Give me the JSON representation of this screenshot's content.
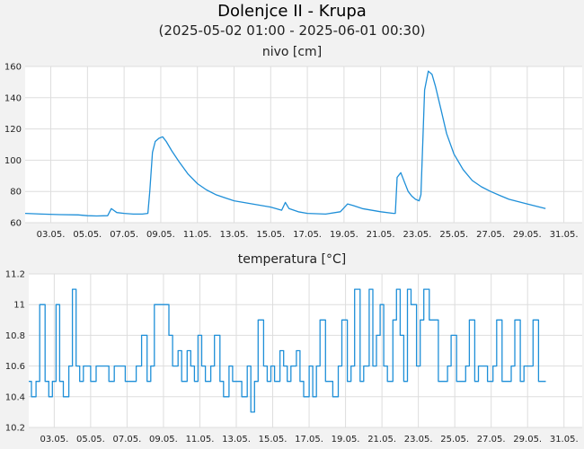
{
  "title": "Dolenjce II - Krupa",
  "subtitle": "(2025-05-02 01:00 - 2025-06-01 00:30)",
  "colors": {
    "line": "#1e8fd8",
    "grid": "#dddddd",
    "plot_bg": "#ffffff",
    "page_bg": "#f2f2f2"
  },
  "chart_data": [
    {
      "type": "line",
      "title": "nivo [cm]",
      "xlabel": "",
      "ylabel": "",
      "x_tick_labels": [
        "03.05.",
        "05.05.",
        "07.05.",
        "09.05.",
        "11.05.",
        "13.05.",
        "15.05.",
        "17.05.",
        "19.05.",
        "21.05.",
        "23.05.",
        "25.05.",
        "27.05.",
        "29.05.",
        "31.05."
      ],
      "x_tick_days": [
        3,
        5,
        7,
        9,
        11,
        13,
        15,
        17,
        19,
        21,
        23,
        25,
        27,
        29,
        31
      ],
      "xlim": [
        1.6,
        32.0
      ],
      "ylim": [
        60,
        160
      ],
      "y_ticks": [
        60,
        80,
        100,
        120,
        140,
        160
      ],
      "grid": true,
      "series": [
        {
          "x": [
            1.6,
            2.5,
            3.5,
            4.5,
            5.0,
            5.5,
            6.1,
            6.3,
            6.6,
            7.0,
            7.5,
            8.0,
            8.3,
            8.4,
            8.55,
            8.7,
            8.9,
            9.1,
            9.3,
            9.6,
            10.0,
            10.5,
            11.0,
            11.5,
            12.0,
            12.5,
            13.0,
            14.0,
            15.0,
            15.6,
            15.8,
            16.0,
            16.5,
            17.0,
            18.0,
            18.8,
            19.2,
            19.5,
            20.0,
            21.0,
            21.7,
            21.8,
            21.9,
            22.1,
            22.3,
            22.5,
            22.7,
            22.9,
            23.1,
            23.2,
            23.3,
            23.4,
            23.6,
            23.8,
            24.0,
            24.3,
            24.6,
            25.0,
            25.5,
            26.0,
            26.5,
            27.0,
            27.5,
            28.0,
            29.0,
            30.0
          ],
          "y": [
            66,
            65.5,
            65.2,
            65,
            64.5,
            64.3,
            64.5,
            69,
            66.5,
            66,
            65.5,
            65.5,
            66,
            80,
            105,
            112,
            114,
            115,
            112,
            106,
            99,
            91,
            85,
            81,
            78,
            76,
            74,
            72,
            70,
            68,
            73,
            69,
            67,
            66,
            65.5,
            67,
            72,
            71,
            69,
            67,
            66,
            66,
            89,
            92,
            86,
            80,
            77,
            75,
            74,
            78,
            112,
            145,
            157,
            155,
            147,
            132,
            117,
            104,
            94,
            87,
            83,
            80,
            77.5,
            75,
            72,
            69
          ]
        }
      ]
    },
    {
      "type": "line",
      "title": "temperatura [°C]",
      "xlabel": "",
      "ylabel": "",
      "x_tick_labels": [
        "03.05.",
        "05.05.",
        "07.05.",
        "09.05.",
        "11.05.",
        "13.05.",
        "15.05.",
        "17.05.",
        "19.05.",
        "21.05.",
        "23.05.",
        "25.05.",
        "27.05.",
        "29.05.",
        "31.05."
      ],
      "x_tick_days": [
        3,
        5,
        7,
        9,
        11,
        13,
        15,
        17,
        19,
        21,
        23,
        25,
        27,
        29,
        31
      ],
      "xlim": [
        1.6,
        32.0
      ],
      "ylim": [
        10.2,
        11.2
      ],
      "y_ticks": [
        10.2,
        10.4,
        10.6,
        10.8,
        11,
        11.2
      ],
      "y_tick_labels": [
        "10.2",
        "10.4",
        "10.6",
        "10.8",
        "11",
        "11.2"
      ],
      "grid": true,
      "series": [
        {
          "x": [
            1.6,
            1.75,
            2.0,
            2.2,
            2.5,
            2.7,
            2.9,
            3.1,
            3.3,
            3.5,
            3.8,
            4.0,
            4.2,
            4.4,
            4.6,
            4.8,
            5.0,
            5.3,
            5.5,
            5.8,
            6.0,
            6.3,
            6.6,
            6.9,
            7.2,
            7.5,
            7.8,
            8.1,
            8.3,
            8.5,
            8.8,
            9.0,
            9.3,
            9.5,
            9.8,
            10.0,
            10.3,
            10.5,
            10.7,
            10.9,
            11.1,
            11.3,
            11.6,
            11.8,
            12.1,
            12.3,
            12.6,
            12.8,
            13.1,
            13.3,
            13.6,
            13.8,
            14.0,
            14.2,
            14.5,
            14.7,
            14.9,
            15.1,
            15.4,
            15.6,
            15.8,
            16.0,
            16.3,
            16.5,
            16.7,
            17.0,
            17.2,
            17.4,
            17.6,
            17.9,
            18.1,
            18.3,
            18.6,
            18.8,
            19.1,
            19.3,
            19.5,
            19.8,
            20.0,
            20.3,
            20.5,
            20.7,
            20.9,
            21.1,
            21.3,
            21.6,
            21.8,
            22.0,
            22.2,
            22.4,
            22.6,
            22.9,
            23.1,
            23.3,
            23.6,
            23.8,
            24.1,
            24.3,
            24.6,
            24.8,
            25.1,
            25.3,
            25.6,
            25.8,
            26.1,
            26.3,
            26.6,
            26.8,
            27.1,
            27.3,
            27.6,
            27.8,
            28.1,
            28.3,
            28.6,
            28.8,
            29.1,
            29.3,
            29.6,
            29.8,
            30.0
          ],
          "y": [
            10.5,
            10.4,
            10.5,
            11.0,
            10.5,
            10.4,
            10.5,
            11.0,
            10.5,
            10.4,
            10.6,
            11.1,
            10.6,
            10.5,
            10.6,
            10.6,
            10.5,
            10.6,
            10.6,
            10.6,
            10.5,
            10.6,
            10.6,
            10.5,
            10.5,
            10.6,
            10.8,
            10.5,
            10.6,
            11.0,
            11.0,
            11.0,
            10.8,
            10.6,
            10.7,
            10.5,
            10.7,
            10.6,
            10.5,
            10.8,
            10.6,
            10.5,
            10.6,
            10.8,
            10.5,
            10.4,
            10.6,
            10.5,
            10.5,
            10.4,
            10.6,
            10.3,
            10.5,
            10.9,
            10.6,
            10.5,
            10.6,
            10.5,
            10.7,
            10.6,
            10.5,
            10.6,
            10.7,
            10.5,
            10.4,
            10.6,
            10.4,
            10.6,
            10.9,
            10.5,
            10.5,
            10.4,
            10.6,
            10.9,
            10.5,
            10.6,
            11.1,
            10.5,
            10.6,
            11.1,
            10.6,
            10.8,
            11.0,
            10.6,
            10.5,
            10.9,
            11.1,
            10.8,
            10.5,
            11.1,
            11.0,
            10.6,
            10.9,
            11.1,
            10.9,
            10.9,
            10.5,
            10.5,
            10.6,
            10.8,
            10.5,
            10.5,
            10.6,
            10.9,
            10.5,
            10.6,
            10.6,
            10.5,
            10.6,
            10.9,
            10.5,
            10.5,
            10.6,
            10.9,
            10.5,
            10.6,
            10.6,
            10.9,
            10.5,
            10.5,
            10.5
          ]
        }
      ]
    }
  ]
}
